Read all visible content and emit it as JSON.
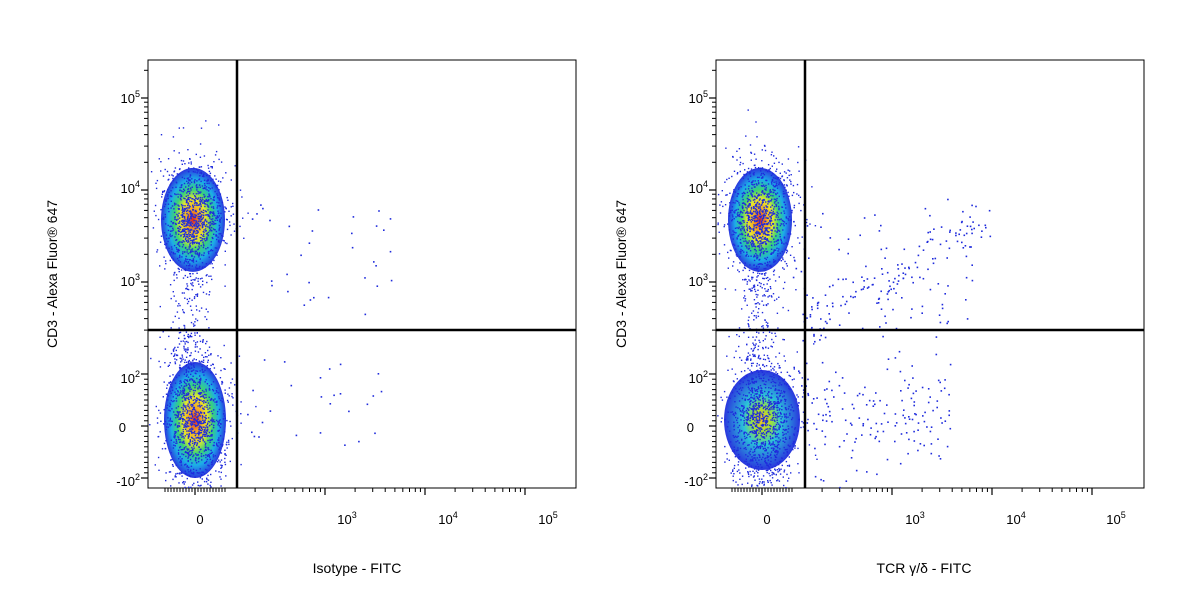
{
  "chart_data": [
    {
      "type": "scatter",
      "plot_style": "density dot plot",
      "xlabel": "Isotype - FITC",
      "ylabel": "CD3 - Alexa Fluor® 647",
      "x_scale": "biexponential",
      "y_scale": "biexponential",
      "xlim": [
        -400,
        200000
      ],
      "ylim": [
        -150,
        250000
      ],
      "x_ticks": [
        {
          "value": 0,
          "base": "0",
          "exp": ""
        },
        {
          "value": 1000,
          "base": "10",
          "exp": "3"
        },
        {
          "value": 10000,
          "base": "10",
          "exp": "4"
        },
        {
          "value": 100000,
          "base": "10",
          "exp": "5"
        }
      ],
      "y_ticks": [
        {
          "value": -100,
          "base": "-10",
          "exp": "2"
        },
        {
          "value": 0,
          "base": "0",
          "exp": ""
        },
        {
          "value": 100,
          "base": "10",
          "exp": "2"
        },
        {
          "value": 1000,
          "base": "10",
          "exp": "3"
        },
        {
          "value": 10000,
          "base": "10",
          "exp": "4"
        },
        {
          "value": 100000,
          "base": "10",
          "exp": "5"
        }
      ],
      "gate": {
        "x": 120,
        "y": 280
      },
      "populations": [
        {
          "x": 0,
          "y": 5500,
          "note": "CD3+ cluster"
        },
        {
          "x": 0,
          "y": 0,
          "note": "CD3- cluster"
        }
      ],
      "grid": false
    },
    {
      "type": "scatter",
      "plot_style": "density dot plot",
      "xlabel": "TCR γ/δ - FITC",
      "ylabel": "CD3 - Alexa Fluor® 647",
      "x_scale": "biexponential",
      "y_scale": "biexponential",
      "xlim": [
        -400,
        200000
      ],
      "ylim": [
        -150,
        250000
      ],
      "x_ticks": [
        {
          "value": 0,
          "base": "0",
          "exp": ""
        },
        {
          "value": 1000,
          "base": "10",
          "exp": "3"
        },
        {
          "value": 10000,
          "base": "10",
          "exp": "4"
        },
        {
          "value": 100000,
          "base": "10",
          "exp": "5"
        }
      ],
      "y_ticks": [
        {
          "value": -100,
          "base": "-10",
          "exp": "2"
        },
        {
          "value": 0,
          "base": "0",
          "exp": ""
        },
        {
          "value": 100,
          "base": "10",
          "exp": "2"
        },
        {
          "value": 1000,
          "base": "10",
          "exp": "3"
        },
        {
          "value": 10000,
          "base": "10",
          "exp": "4"
        },
        {
          "value": 100000,
          "base": "10",
          "exp": "5"
        }
      ],
      "gate": {
        "x": 120,
        "y": 280
      },
      "populations": [
        {
          "x": 0,
          "y": 5500,
          "note": "CD3+ cluster"
        },
        {
          "x": 0,
          "y": 0,
          "note": "CD3- cluster"
        },
        {
          "x": 400,
          "y": 3000,
          "note": "TCR gamma/delta+ CD3+ events"
        }
      ],
      "grid": false
    }
  ],
  "colors": {
    "low_density": "#1f2bdc",
    "mid_density": "#18b4e6",
    "high_density": "#d81818",
    "gate_line": "#000000"
  }
}
